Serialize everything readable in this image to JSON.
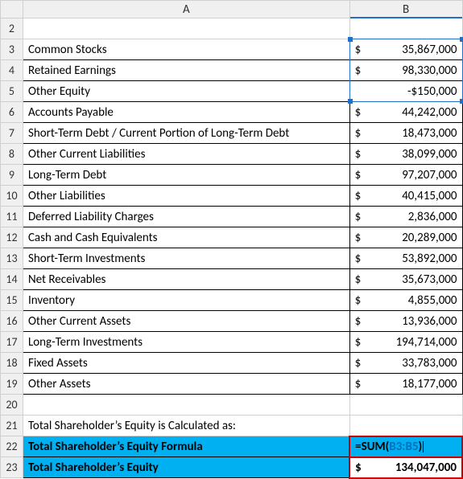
{
  "columns": {
    "A": "A",
    "B": "B"
  },
  "rows": [
    {
      "n": 2,
      "label": "",
      "cur": "",
      "val": ""
    },
    {
      "n": 3,
      "label": "Common Stocks",
      "cur": "$",
      "val": "35,867,000"
    },
    {
      "n": 4,
      "label": "Retained Earnings",
      "cur": "$",
      "val": "98,330,000"
    },
    {
      "n": 5,
      "label": "Other Equity",
      "cur": "",
      "val": "-$150,000"
    },
    {
      "n": 6,
      "label": "Accounts Payable",
      "cur": "$",
      "val": "44,242,000"
    },
    {
      "n": 7,
      "label": "Short-Term Debt / Current Portion of Long-Term Debt",
      "cur": "$",
      "val": "18,473,000"
    },
    {
      "n": 8,
      "label": "Other Current Liabilities",
      "cur": "$",
      "val": "38,099,000"
    },
    {
      "n": 9,
      "label": "Long-Term Debt",
      "cur": "$",
      "val": "97,207,000"
    },
    {
      "n": 10,
      "label": "Other Liabilities",
      "cur": "$",
      "val": "40,415,000"
    },
    {
      "n": 11,
      "label": "Deferred Liability Charges",
      "cur": "$",
      "val": "2,836,000"
    },
    {
      "n": 12,
      "label": "Cash and Cash Equivalents",
      "cur": "$",
      "val": "20,289,000"
    },
    {
      "n": 13,
      "label": "Short-Term Investments",
      "cur": "$",
      "val": "53,892,000"
    },
    {
      "n": 14,
      "label": "Net Receivables",
      "cur": "$",
      "val": "35,673,000"
    },
    {
      "n": 15,
      "label": "Inventory",
      "cur": "$",
      "val": "4,855,000"
    },
    {
      "n": 16,
      "label": "Other Current Assets",
      "cur": "$",
      "val": "13,936,000"
    },
    {
      "n": 17,
      "label": "Long-Term Investments",
      "cur": "$",
      "val": "194,714,000"
    },
    {
      "n": 18,
      "label": "Fixed Assets",
      "cur": "$",
      "val": "33,783,000"
    },
    {
      "n": 19,
      "label": "Other Assets",
      "cur": "$",
      "val": "18,177,000"
    }
  ],
  "row20": {
    "n": 20
  },
  "row21": {
    "n": 21,
    "label": "Total Shareholder’s Equity is Calculated as:"
  },
  "row22": {
    "n": 22,
    "label": "Total Shareholder’s Equity Formula",
    "formula_prefix": "=SUM(",
    "formula_ref": "B3:B5",
    "formula_suffix": ")"
  },
  "row23": {
    "n": 23,
    "label": "Total Shareholder’s Equity",
    "cur": "$",
    "val": "134,047,000"
  },
  "selection": {
    "range": "B3:B5"
  },
  "colors": {
    "highlight_bg": "#00b0f0",
    "formula_border": "#cc0000",
    "selection_border": "#1f6fcc",
    "header_bg": "#f0f0f0",
    "grid": "#d0d0d0",
    "ref_color": "#0070c0"
  }
}
